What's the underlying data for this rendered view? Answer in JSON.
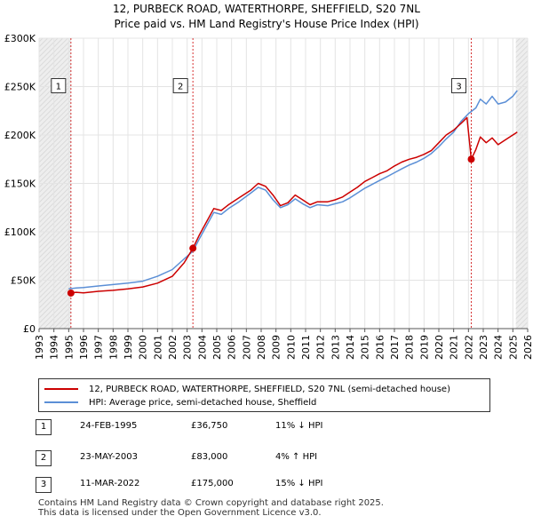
{
  "chart_data": {
    "type": "line",
    "title": "12, PURBECK ROAD, WATERTHORPE, SHEFFIELD, S20 7NL",
    "subtitle": "Price paid vs. HM Land Registry's House Price Index (HPI)",
    "xlim": [
      1993,
      2026
    ],
    "ylim": [
      0,
      300000
    ],
    "x_ticks": [
      1993,
      1994,
      1995,
      1996,
      1997,
      1998,
      1999,
      2000,
      2001,
      2002,
      2003,
      2004,
      2005,
      2006,
      2007,
      2008,
      2009,
      2010,
      2011,
      2012,
      2013,
      2014,
      2015,
      2016,
      2017,
      2018,
      2019,
      2020,
      2021,
      2022,
      2023,
      2024,
      2025,
      2026
    ],
    "y_ticks": [
      {
        "value": 0,
        "label": "£0"
      },
      {
        "value": 50000,
        "label": "£50K"
      },
      {
        "value": 100000,
        "label": "£100K"
      },
      {
        "value": 150000,
        "label": "£150K"
      },
      {
        "value": 200000,
        "label": "£200K"
      },
      {
        "value": 250000,
        "label": "£250K"
      },
      {
        "value": 300000,
        "label": "£300K"
      }
    ],
    "series": [
      {
        "name": "12, PURBECK ROAD, WATERTHORPE, SHEFFIELD, S20 7NL (semi-detached house)",
        "color": "#cc0000",
        "points": [
          [
            1995.15,
            36750
          ],
          [
            1995.5,
            37500
          ],
          [
            1996,
            37000
          ],
          [
            1997,
            38500
          ],
          [
            1998,
            39500
          ],
          [
            1999,
            41000
          ],
          [
            2000,
            43000
          ],
          [
            2001,
            47000
          ],
          [
            2002,
            54000
          ],
          [
            2002.8,
            68000
          ],
          [
            2003.39,
            83000
          ],
          [
            2003.8,
            96000
          ],
          [
            2004.3,
            110000
          ],
          [
            2004.8,
            124000
          ],
          [
            2005.3,
            122000
          ],
          [
            2005.8,
            128000
          ],
          [
            2006.5,
            135000
          ],
          [
            2007.3,
            143000
          ],
          [
            2007.8,
            150000
          ],
          [
            2008.3,
            147000
          ],
          [
            2008.8,
            138000
          ],
          [
            2009.3,
            127000
          ],
          [
            2009.8,
            130000
          ],
          [
            2010.3,
            138000
          ],
          [
            2010.8,
            133000
          ],
          [
            2011.3,
            128000
          ],
          [
            2011.8,
            131000
          ],
          [
            2012.5,
            131000
          ],
          [
            2013,
            133000
          ],
          [
            2013.5,
            136000
          ],
          [
            2014,
            141000
          ],
          [
            2014.5,
            146000
          ],
          [
            2015,
            152000
          ],
          [
            2015.5,
            156000
          ],
          [
            2016,
            160000
          ],
          [
            2016.5,
            163000
          ],
          [
            2017,
            168000
          ],
          [
            2017.5,
            172000
          ],
          [
            2018,
            175000
          ],
          [
            2018.5,
            177000
          ],
          [
            2019,
            180000
          ],
          [
            2019.5,
            184000
          ],
          [
            2020,
            192000
          ],
          [
            2020.5,
            200000
          ],
          [
            2021,
            205000
          ],
          [
            2021.5,
            212000
          ],
          [
            2021.9,
            218000
          ],
          [
            2022.19,
            175000
          ],
          [
            2022.5,
            185000
          ],
          [
            2022.8,
            198000
          ],
          [
            2023.2,
            192000
          ],
          [
            2023.6,
            197000
          ],
          [
            2024,
            190000
          ],
          [
            2024.5,
            195000
          ],
          [
            2025,
            200000
          ],
          [
            2025.3,
            203000
          ]
        ]
      },
      {
        "name": "HPI: Average price, semi-detached house, Sheffield",
        "color": "#5b8fd6",
        "points": [
          [
            1995,
            41000
          ],
          [
            1995.5,
            42000
          ],
          [
            1996,
            42500
          ],
          [
            1997,
            44000
          ],
          [
            1998,
            45500
          ],
          [
            1999,
            47000
          ],
          [
            2000,
            49000
          ],
          [
            2001,
            54000
          ],
          [
            2002,
            61000
          ],
          [
            2002.8,
            72000
          ],
          [
            2003.39,
            80000
          ],
          [
            2003.8,
            92000
          ],
          [
            2004.3,
            106000
          ],
          [
            2004.8,
            120000
          ],
          [
            2005.3,
            118000
          ],
          [
            2005.8,
            124000
          ],
          [
            2006.5,
            131000
          ],
          [
            2007.3,
            140000
          ],
          [
            2007.8,
            146000
          ],
          [
            2008.3,
            143000
          ],
          [
            2008.8,
            133000
          ],
          [
            2009.3,
            125000
          ],
          [
            2009.8,
            128000
          ],
          [
            2010.3,
            134000
          ],
          [
            2010.8,
            129000
          ],
          [
            2011.3,
            125000
          ],
          [
            2011.8,
            128000
          ],
          [
            2012.5,
            127000
          ],
          [
            2013,
            129000
          ],
          [
            2013.5,
            131000
          ],
          [
            2014,
            135000
          ],
          [
            2014.5,
            140000
          ],
          [
            2015,
            145000
          ],
          [
            2015.5,
            149000
          ],
          [
            2016,
            153000
          ],
          [
            2016.5,
            157000
          ],
          [
            2017,
            161000
          ],
          [
            2017.5,
            165000
          ],
          [
            2018,
            169000
          ],
          [
            2018.5,
            172000
          ],
          [
            2019,
            176000
          ],
          [
            2019.5,
            181000
          ],
          [
            2020,
            188000
          ],
          [
            2020.5,
            196000
          ],
          [
            2021,
            203000
          ],
          [
            2021.5,
            214000
          ],
          [
            2022,
            222000
          ],
          [
            2022.5,
            228000
          ],
          [
            2022.8,
            237000
          ],
          [
            2023.2,
            232000
          ],
          [
            2023.6,
            240000
          ],
          [
            2024,
            232000
          ],
          [
            2024.5,
            234000
          ],
          [
            2025,
            240000
          ],
          [
            2025.3,
            246000
          ]
        ]
      }
    ],
    "sales": [
      {
        "num": "1",
        "year": 1995.15,
        "price": 36750,
        "date": "24-FEB-1995",
        "price_label": "£36,750",
        "hpi": "11% ↓ HPI",
        "box_value": 250000
      },
      {
        "num": "2",
        "year": 2003.39,
        "price": 83000,
        "date": "23-MAY-2003",
        "price_label": "£83,000",
        "hpi": "4% ↑ HPI",
        "box_value": 250000
      },
      {
        "num": "3",
        "year": 2022.19,
        "price": 175000,
        "date": "11-MAR-2022",
        "price_label": "£175,000",
        "hpi": "15% ↓ HPI",
        "box_value": 250000
      }
    ],
    "shaded_regions": [
      [
        1993,
        1995.15
      ],
      [
        2025.2,
        2026
      ]
    ],
    "legend": [
      {
        "label": "12, PURBECK ROAD, WATERTHORPE, SHEFFIELD, S20 7NL (semi-detached house)",
        "color": "#cc0000"
      },
      {
        "label": "HPI: Average price, semi-detached house, Sheffield",
        "color": "#5b8fd6"
      }
    ]
  },
  "footer": {
    "line1": "Contains HM Land Registry data © Crown copyright and database right 2025.",
    "line2": "This data is licensed under the Open Government Licence v3.0."
  }
}
